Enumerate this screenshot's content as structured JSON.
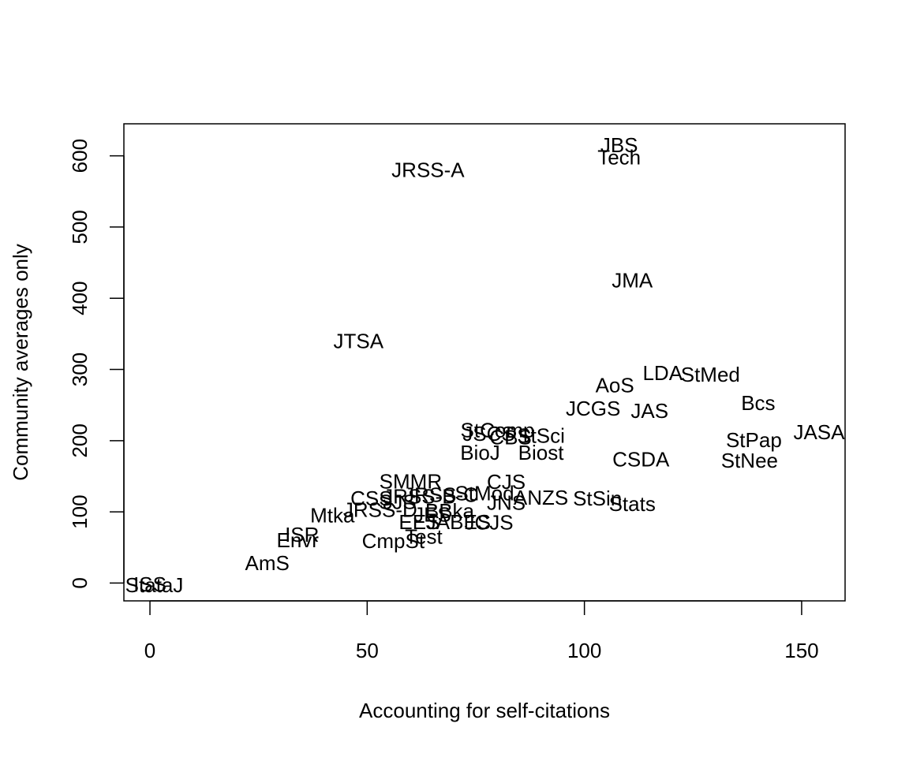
{
  "chart_data": {
    "type": "scatter",
    "title": "",
    "xlabel": "Accounting for self-citations",
    "ylabel": "Community averages only",
    "xlim": [
      -6,
      160
    ],
    "ylim": [
      -25,
      645
    ],
    "xticks": [
      0,
      50,
      100,
      150
    ],
    "yticks": [
      0,
      100,
      200,
      300,
      400,
      500,
      600
    ],
    "marker": "text-label",
    "grid": false,
    "legend": "none",
    "points": [
      {
        "label": "JBS",
        "x": 108,
        "y": 615
      },
      {
        "label": "Tech",
        "x": 108,
        "y": 598
      },
      {
        "label": "JRSS-A",
        "x": 64,
        "y": 580
      },
      {
        "label": "JMA",
        "x": 111,
        "y": 425
      },
      {
        "label": "JTSA",
        "x": 48,
        "y": 340
      },
      {
        "label": "LDA",
        "x": 118,
        "y": 295
      },
      {
        "label": "StMed",
        "x": 129,
        "y": 293
      },
      {
        "label": "AoS",
        "x": 107,
        "y": 278
      },
      {
        "label": "Bcs",
        "x": 140,
        "y": 253
      },
      {
        "label": "JCGS",
        "x": 102,
        "y": 245
      },
      {
        "label": "JAS",
        "x": 115,
        "y": 242
      },
      {
        "label": "JASA",
        "x": 154,
        "y": 212
      },
      {
        "label": "StPap",
        "x": 139,
        "y": 201
      },
      {
        "label": "StNee",
        "x": 138,
        "y": 172
      },
      {
        "label": "CSDA",
        "x": 113,
        "y": 174
      },
      {
        "label": "StComp",
        "x": 80,
        "y": 215
      },
      {
        "label": "JSCS",
        "x": 78,
        "y": 210
      },
      {
        "label": "StSci",
        "x": 90,
        "y": 207
      },
      {
        "label": "CBS",
        "x": 83,
        "y": 205
      },
      {
        "label": "BioJ",
        "x": 76,
        "y": 183
      },
      {
        "label": "Biost",
        "x": 90,
        "y": 183
      },
      {
        "label": "SMMR",
        "x": 60,
        "y": 143
      },
      {
        "label": "CJS",
        "x": 82,
        "y": 142
      },
      {
        "label": "StMod",
        "x": 77,
        "y": 126
      },
      {
        "label": "JRSS-C",
        "x": 67,
        "y": 124
      },
      {
        "label": "JRSS-B",
        "x": 62,
        "y": 122
      },
      {
        "label": "ANZS",
        "x": 90,
        "y": 120
      },
      {
        "label": "StSin",
        "x": 103,
        "y": 119
      },
      {
        "label": "JNS",
        "x": 82,
        "y": 113
      },
      {
        "label": "Stats",
        "x": 111,
        "y": 111
      },
      {
        "label": "CSS",
        "x": 51,
        "y": 119
      },
      {
        "label": "SJS",
        "x": 57,
        "y": 114
      },
      {
        "label": "Mtka",
        "x": 42,
        "y": 95
      },
      {
        "label": "JRSS-D",
        "x": 53,
        "y": 103
      },
      {
        "label": "JABES",
        "x": 71,
        "y": 86
      },
      {
        "label": "BBka",
        "x": 69,
        "y": 101
      },
      {
        "label": "EES",
        "x": 62,
        "y": 86
      },
      {
        "label": "JES",
        "x": 65,
        "y": 96
      },
      {
        "label": "JCJS",
        "x": 78,
        "y": 85
      },
      {
        "label": "ISR",
        "x": 35,
        "y": 68
      },
      {
        "label": "Envr",
        "x": 34,
        "y": 60
      },
      {
        "label": "Test",
        "x": 63,
        "y": 65
      },
      {
        "label": "CmpSt",
        "x": 56,
        "y": 59
      },
      {
        "label": "AmS",
        "x": 27,
        "y": 28
      },
      {
        "label": "ISS",
        "x": 0,
        "y": -2
      },
      {
        "label": "StataJ",
        "x": 1,
        "y": -3
      }
    ]
  }
}
